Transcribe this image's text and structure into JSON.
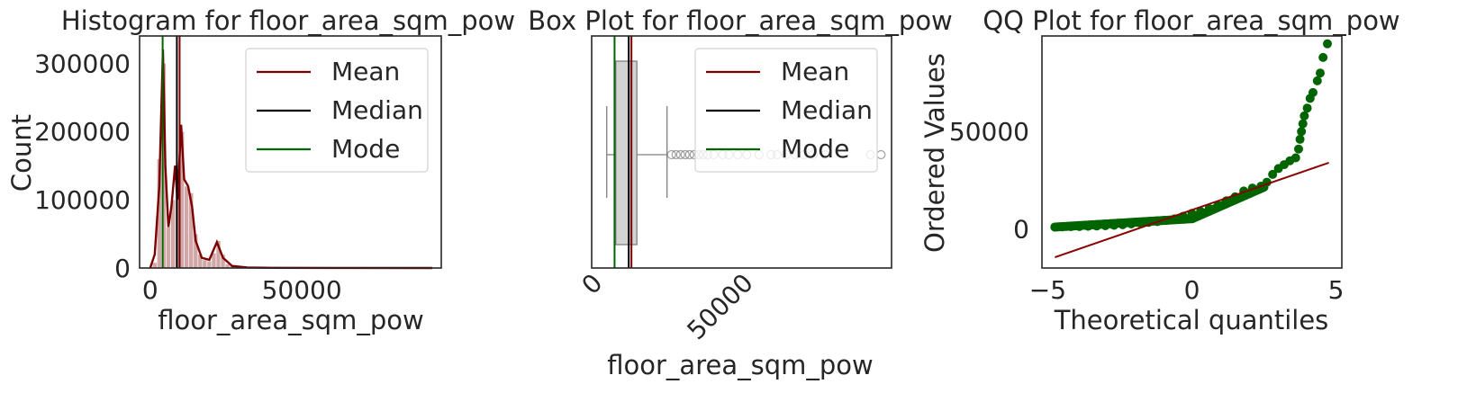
{
  "colors": {
    "mean": "#7b0000",
    "median": "#000000",
    "mode": "#006400",
    "hist_bar": "#c28a8a",
    "box_fill": "#d3d3d3",
    "qq_points": "#006400",
    "qq_line": "#8b0000"
  },
  "legend_labels": [
    "Mean",
    "Median",
    "Mode"
  ],
  "chart_data": [
    {
      "type": "bar",
      "title": "Histogram for floor_area_sqm_pow",
      "xlabel": "floor_area_sqm_pow",
      "ylabel": "Count",
      "xlim": [
        -3500,
        96000
      ],
      "ylim": [
        0,
        340000
      ],
      "xticks": [
        0,
        50000
      ],
      "yticks": [
        0,
        100000,
        200000,
        300000
      ],
      "ytick_labels": [
        "0",
        "100000",
        "200000",
        "300000"
      ],
      "xtick_labels": [
        "0",
        "50000"
      ],
      "legend": "top-right",
      "grid": false,
      "bars": [
        {
          "x": 1500,
          "count": 8000
        },
        {
          "x": 3000,
          "count": 160000
        },
        {
          "x": 4500,
          "count": 300000
        },
        {
          "x": 6000,
          "count": 60000
        },
        {
          "x": 7500,
          "count": 100000
        },
        {
          "x": 9000,
          "count": 140000
        },
        {
          "x": 10500,
          "count": 200000
        },
        {
          "x": 12000,
          "count": 120000
        },
        {
          "x": 13500,
          "count": 110000
        },
        {
          "x": 15000,
          "count": 50000
        },
        {
          "x": 16500,
          "count": 20000
        },
        {
          "x": 18000,
          "count": 12000
        },
        {
          "x": 19500,
          "count": 10000
        },
        {
          "x": 21000,
          "count": 22000
        },
        {
          "x": 22500,
          "count": 40000
        },
        {
          "x": 24000,
          "count": 20000
        },
        {
          "x": 25500,
          "count": 6000
        },
        {
          "x": 27000,
          "count": 3000
        },
        {
          "x": 30000,
          "count": 1500
        },
        {
          "x": 35000,
          "count": 800
        }
      ],
      "kde": [
        [
          0,
          0
        ],
        [
          1500,
          20000
        ],
        [
          3000,
          120000
        ],
        [
          4200,
          320000
        ],
        [
          5000,
          150000
        ],
        [
          6000,
          60000
        ],
        [
          7000,
          90000
        ],
        [
          8200,
          150000
        ],
        [
          9000,
          100000
        ],
        [
          10200,
          210000
        ],
        [
          11200,
          130000
        ],
        [
          12500,
          120000
        ],
        [
          13800,
          90000
        ],
        [
          15000,
          40000
        ],
        [
          17000,
          15000
        ],
        [
          19500,
          12000
        ],
        [
          22000,
          38000
        ],
        [
          24000,
          15000
        ],
        [
          27000,
          3000
        ],
        [
          32000,
          800
        ],
        [
          40000,
          300
        ],
        [
          60000,
          100
        ],
        [
          93000,
          0
        ]
      ],
      "mean": 9700,
      "median": 8800,
      "mode": 4100
    },
    {
      "type": "box",
      "title": "Box Plot for floor_area_sqm_pow",
      "xlabel": "floor_area_sqm_pow",
      "xlim": [
        -3500,
        96000
      ],
      "xticks": [
        0,
        50000
      ],
      "xtick_labels": [
        "0",
        "50000"
      ],
      "legend": "top-right",
      "grid": false,
      "whisker_low": 1500,
      "q1": 4500,
      "median": 8800,
      "q3": 11500,
      "whisker_high": 21500,
      "outliers": [
        23000,
        24500,
        26000,
        27500,
        29000,
        30500,
        32000,
        33500,
        35000,
        37000,
        40000,
        42000,
        45000,
        48000,
        52000,
        56000,
        58000,
        61000,
        64000,
        67000,
        70000,
        74000,
        89000,
        92500
      ],
      "mean": 9700,
      "mode": 4100
    },
    {
      "type": "scatter",
      "title": "QQ Plot for floor_area_sqm_pow",
      "xlabel": "Theoretical quantiles",
      "ylabel": "Ordered Values",
      "xlim": [
        -5.2,
        5.2
      ],
      "ylim": [
        -20000,
        99000
      ],
      "xticks": [
        -5,
        0,
        5
      ],
      "xtick_labels": [
        "−5",
        "0",
        "5"
      ],
      "yticks": [
        0,
        50000
      ],
      "ytick_labels": [
        "0",
        "50000"
      ],
      "grid": false,
      "points": [
        [
          -4.75,
          1000
        ],
        [
          -4.5,
          1100
        ],
        [
          -4.2,
          1200
        ],
        [
          -3.9,
          1300
        ],
        [
          -3.6,
          1400
        ],
        [
          -3.3,
          1550
        ],
        [
          -3.0,
          1700
        ],
        [
          -2.7,
          1900
        ],
        [
          -2.4,
          2200
        ],
        [
          -2.1,
          2600
        ],
        [
          -1.8,
          3000
        ],
        [
          -1.5,
          3400
        ],
        [
          -1.2,
          3800
        ],
        [
          -0.9,
          4400
        ],
        [
          -0.6,
          5200
        ],
        [
          -0.3,
          6500
        ],
        [
          0.0,
          8000
        ],
        [
          0.3,
          9000
        ],
        [
          0.6,
          10500
        ],
        [
          0.9,
          12000
        ],
        [
          1.2,
          14500
        ],
        [
          1.5,
          16500
        ],
        [
          1.8,
          19500
        ],
        [
          2.1,
          21000
        ],
        [
          2.4,
          22000
        ],
        [
          2.6,
          24000
        ],
        [
          2.8,
          28000
        ],
        [
          3.0,
          31000
        ],
        [
          3.2,
          33000
        ],
        [
          3.4,
          35000
        ],
        [
          3.6,
          36500
        ],
        [
          3.7,
          41000
        ],
        [
          3.75,
          46000
        ],
        [
          3.8,
          50000
        ],
        [
          3.85,
          54000
        ],
        [
          3.9,
          58000
        ],
        [
          4.0,
          62000
        ],
        [
          4.1,
          67000
        ],
        [
          4.2,
          70000
        ],
        [
          4.35,
          76000
        ],
        [
          4.45,
          80000
        ],
        [
          4.55,
          88000
        ],
        [
          4.7,
          95000
        ]
      ],
      "fit_line": [
        [
          -4.75,
          -14500
        ],
        [
          4.75,
          34000
        ]
      ]
    }
  ]
}
